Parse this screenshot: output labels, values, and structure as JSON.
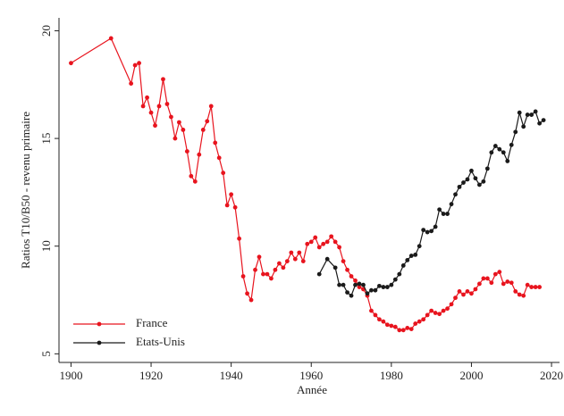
{
  "chart_data": {
    "type": "line",
    "xlabel": "Année",
    "ylabel": "Ratios T10/B50 - revenu primaire",
    "xlim": [
      1897,
      2022
    ],
    "xticks": [
      1900,
      1920,
      1940,
      1960,
      1980,
      2000,
      2020
    ],
    "ylim": [
      4.6,
      20.6
    ],
    "yticks": [
      5,
      10,
      15,
      20
    ],
    "legend": "bottom-left",
    "series": [
      {
        "name": "France",
        "color": "#e8141e",
        "x": [
          1900,
          1910,
          1915,
          1916,
          1917,
          1918,
          1919,
          1920,
          1921,
          1922,
          1923,
          1924,
          1925,
          1926,
          1927,
          1928,
          1929,
          1930,
          1931,
          1932,
          1933,
          1934,
          1935,
          1936,
          1937,
          1938,
          1939,
          1940,
          1941,
          1942,
          1943,
          1944,
          1945,
          1946,
          1947,
          1948,
          1949,
          1950,
          1951,
          1952,
          1953,
          1954,
          1955,
          1956,
          1957,
          1958,
          1959,
          1960,
          1961,
          1962,
          1963,
          1964,
          1965,
          1966,
          1967,
          1968,
          1969,
          1970,
          1971,
          1972,
          1973,
          1974,
          1975,
          1976,
          1977,
          1978,
          1979,
          1980,
          1981,
          1982,
          1983,
          1984,
          1985,
          1986,
          1987,
          1988,
          1989,
          1990,
          1991,
          1992,
          1993,
          1994,
          1995,
          1996,
          1997,
          1998,
          1999,
          2000,
          2001,
          2002,
          2003,
          2004,
          2005,
          2006,
          2007,
          2008,
          2009,
          2010,
          2011,
          2012,
          2013,
          2014,
          2015,
          2016,
          2017
        ],
        "values": [
          18.5,
          19.65,
          17.55,
          18.4,
          18.5,
          16.5,
          16.9,
          16.2,
          15.6,
          16.5,
          17.75,
          16.6,
          16.0,
          15.0,
          15.75,
          15.4,
          14.4,
          13.25,
          13.0,
          14.25,
          15.4,
          15.8,
          16.5,
          14.8,
          14.1,
          13.4,
          11.9,
          12.4,
          11.8,
          10.35,
          8.6,
          7.8,
          7.5,
          8.9,
          9.5,
          8.7,
          8.7,
          8.5,
          8.9,
          9.2,
          9.0,
          9.3,
          9.7,
          9.4,
          9.7,
          9.3,
          10.1,
          10.2,
          10.4,
          9.95,
          10.1,
          10.2,
          10.45,
          10.2,
          9.95,
          9.3,
          8.9,
          8.6,
          8.4,
          8.1,
          8.0,
          7.7,
          7.0,
          6.8,
          6.6,
          6.5,
          6.35,
          6.3,
          6.25,
          6.1,
          6.1,
          6.2,
          6.15,
          6.4,
          6.5,
          6.6,
          6.8,
          7.0,
          6.9,
          6.85,
          7.0,
          7.1,
          7.3,
          7.6,
          7.9,
          7.75,
          7.9,
          7.8,
          8.0,
          8.25,
          8.5,
          8.5,
          8.3,
          8.7,
          8.8,
          8.25,
          8.35,
          8.3,
          7.9,
          7.75,
          7.7,
          8.2,
          8.1,
          8.1,
          8.1
        ]
      },
      {
        "name": "Etats-Unis",
        "color": "#1a1a1a",
        "x": [
          1962,
          1964,
          1966,
          1967,
          1968,
          1969,
          1970,
          1971,
          1972,
          1973,
          1974,
          1975,
          1976,
          1977,
          1978,
          1979,
          1980,
          1981,
          1982,
          1983,
          1984,
          1985,
          1986,
          1987,
          1988,
          1989,
          1990,
          1991,
          1992,
          1993,
          1994,
          1995,
          1996,
          1997,
          1998,
          1999,
          2000,
          2001,
          2002,
          2003,
          2004,
          2005,
          2006,
          2007,
          2008,
          2009,
          2010,
          2011,
          2012,
          2013,
          2014,
          2015,
          2016,
          2017,
          2018
        ],
        "values": [
          8.7,
          9.4,
          9.0,
          8.2,
          8.2,
          7.85,
          7.7,
          8.2,
          8.25,
          8.2,
          7.8,
          7.95,
          7.95,
          8.15,
          8.1,
          8.1,
          8.2,
          8.45,
          8.7,
          9.1,
          9.35,
          9.55,
          9.6,
          10.0,
          10.75,
          10.65,
          10.7,
          10.9,
          11.7,
          11.5,
          11.5,
          11.95,
          12.4,
          12.75,
          12.95,
          13.1,
          13.5,
          13.15,
          12.85,
          13.0,
          13.6,
          14.35,
          14.65,
          14.5,
          14.35,
          13.95,
          14.7,
          15.3,
          16.2,
          15.55,
          16.1,
          16.1,
          16.25,
          15.7,
          15.85
        ]
      }
    ]
  }
}
